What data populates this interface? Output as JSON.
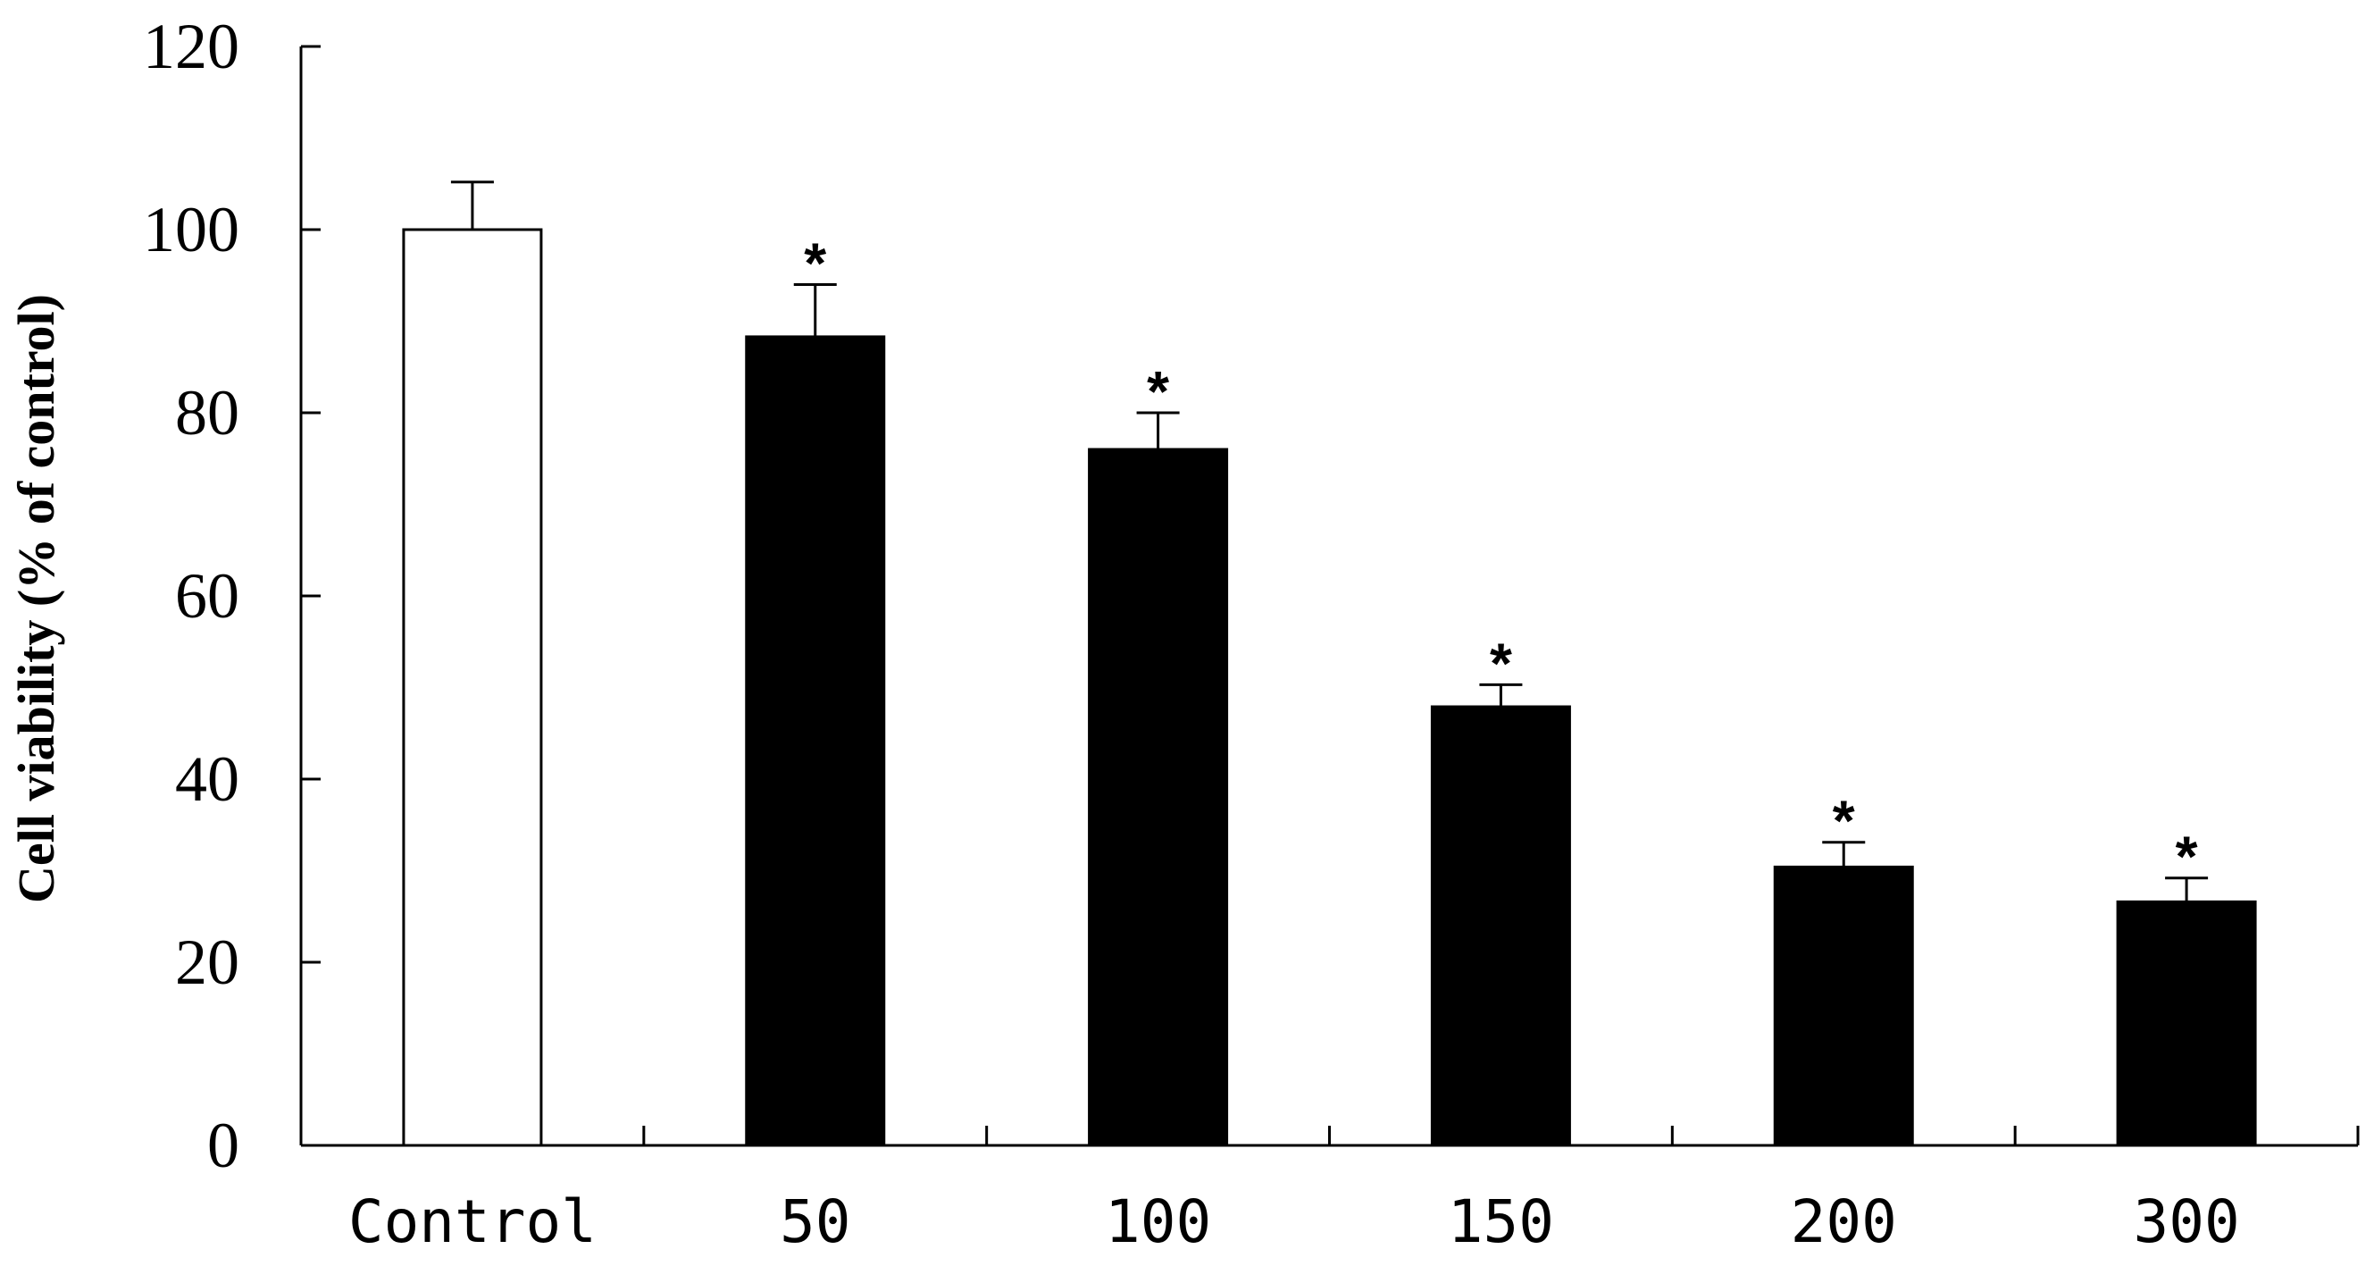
{
  "chart_data": {
    "type": "bar",
    "title": "",
    "xlabel": "",
    "ylabel": "Cell viability (% of control)",
    "ylim": [
      0,
      120
    ],
    "yticks": [
      "0",
      "20",
      "40",
      "60",
      "80",
      "100",
      "120"
    ],
    "categories": [
      "Control",
      "50",
      "100",
      "150",
      "200",
      "300"
    ],
    "values": [
      100,
      88.3,
      76,
      47.9,
      30.4,
      26.6
    ],
    "errors": [
      5.2,
      5.7,
      4,
      2.4,
      2.7,
      2.6
    ],
    "significance": [
      "",
      "*",
      "*",
      "*",
      "*",
      "*"
    ],
    "bar_fills": [
      "#ffffff",
      "#000000",
      "#000000",
      "#000000",
      "#000000",
      "#000000"
    ],
    "grid": false,
    "legend": "none"
  }
}
